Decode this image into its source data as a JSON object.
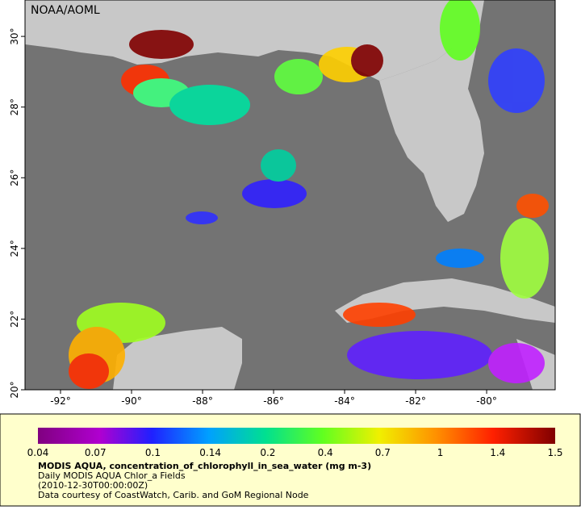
{
  "watermark": "NOAA/AOML",
  "map": {
    "xlim": [
      -93,
      -78.07
    ],
    "ylim": [
      20,
      31.03
    ],
    "xticks": [
      {
        "value": -92,
        "label": "-92°"
      },
      {
        "value": -90,
        "label": "-90°"
      },
      {
        "value": -88,
        "label": "-88°"
      },
      {
        "value": -86,
        "label": "-86°"
      },
      {
        "value": -84,
        "label": "-84°"
      },
      {
        "value": -82,
        "label": "-82°"
      },
      {
        "value": -80,
        "label": "-80°"
      }
    ],
    "yticks": [
      {
        "value": 20,
        "label": "20°"
      },
      {
        "value": 22,
        "label": "22°"
      },
      {
        "value": 24,
        "label": "24°"
      },
      {
        "value": 26,
        "label": "26°"
      },
      {
        "value": 28,
        "label": "28°"
      },
      {
        "value": 30,
        "label": "30°"
      }
    ]
  },
  "colorbar": {
    "ticks": [
      0.04,
      0.07,
      0.1,
      0.14,
      0.2,
      0.4,
      0.7,
      1,
      1.4,
      1.5
    ]
  },
  "caption": {
    "title": "MODIS AQUA, concentration_of_chlorophyll_in_sea_water (mg m-3)",
    "line2": "Daily MODIS AQUA Chlor_a Fields",
    "line3": "(2010-12-30T00:00:00Z)",
    "line4": "Data courtesy of CoastWatch, Carib. and GoM Regional Node"
  }
}
